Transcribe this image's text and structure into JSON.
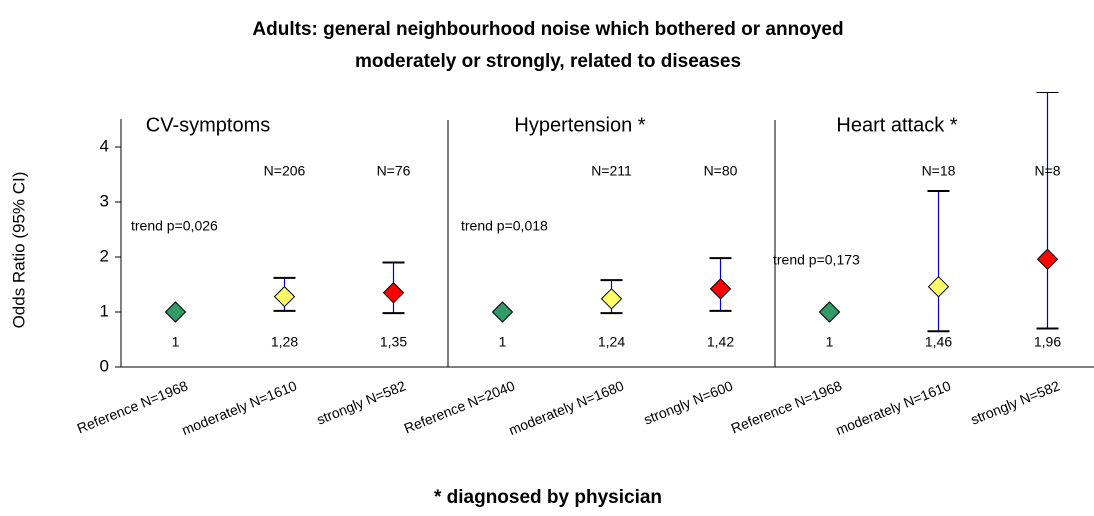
{
  "chart_data": {
    "type": "errorbar",
    "title": [
      "Adults: general neighbourhood noise which bothered or annoyed",
      "moderately or strongly, related to diseases"
    ],
    "y_label": "Odds Ratio (95% CI)",
    "footnote": "* diagnosed by physician",
    "ylim": [
      0,
      4.5
    ],
    "yticks": [
      0,
      1,
      2,
      3,
      4
    ],
    "groups": [
      {
        "title": "CV-symptoms",
        "trend": "trend p=0,026"
      },
      {
        "title": "Hypertension *",
        "trend": "trend p=0,018"
      },
      {
        "title": "Heart attack *",
        "trend": "trend p=0,173"
      }
    ],
    "categories": [
      "Reference N=1968",
      "moderately N=1610",
      "strongly N=582",
      "Reference N=2040",
      "moderately N=1680",
      "strongly N=600",
      "Reference N=1968",
      "moderately N=1610",
      "strongly N=582"
    ],
    "values": [
      1,
      1.28,
      1.35,
      1,
      1.24,
      1.42,
      1,
      1.46,
      1.96
    ],
    "value_labels": [
      "1",
      "1,28",
      "1,35",
      "1",
      "1,24",
      "1,42",
      "1",
      "1,46",
      "1,96"
    ],
    "lower": [
      null,
      1.02,
      0.98,
      null,
      0.98,
      1.02,
      null,
      0.65,
      0.7
    ],
    "upper": [
      null,
      1.62,
      1.9,
      null,
      1.58,
      1.98,
      null,
      3.2,
      5.0
    ],
    "n_labels": [
      null,
      "N=206",
      "N=76",
      null,
      "N=211",
      "N=80",
      null,
      "N=18",
      "N=8"
    ],
    "colors": [
      "#339966",
      "#ffff66",
      "#ff0000",
      "#339966",
      "#ffff66",
      "#ff0000",
      "#339966",
      "#ffff66",
      "#ff0000"
    ]
  }
}
